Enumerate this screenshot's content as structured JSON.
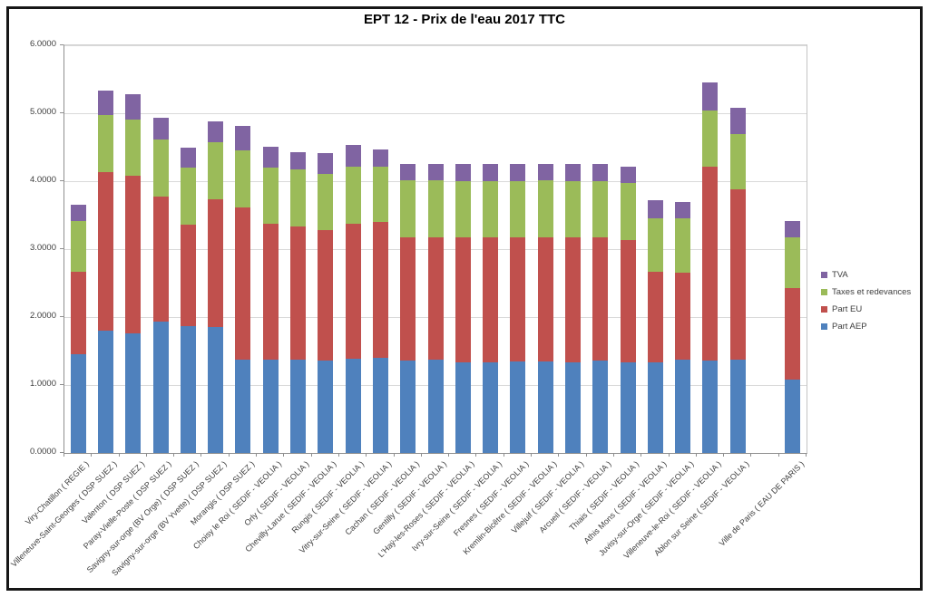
{
  "chart_data": {
    "type": "bar",
    "stacked": true,
    "title": "EPT 12 - Prix de l'eau 2017 TTC",
    "xlabel": "",
    "ylabel": "",
    "ylim": [
      0,
      6
    ],
    "grid": true,
    "legend_position": "right",
    "y_tick_labels": [
      "0.0000",
      "1.0000",
      "2.0000",
      "3.0000",
      "4.0000",
      "5.0000",
      "6.0000"
    ],
    "categories": [
      "Viry-Chatillon ( REGIE )",
      "Villeneuve-Saint-Georges ( DSP SUEZ )",
      "Valenton ( DSP SUEZ )",
      "Paray-Vielle-Poste ( DSP SUEZ )",
      "Savigny-sur-orge (BV Orge) ( DSP SUEZ )",
      "Savigny-sur-orge (BV Yvette) ( DSP SUEZ )",
      "Morangis ( DSP SUEZ )",
      "Choisy le Roi ( SEDIF - VEOLIA )",
      "Orly ( SEDIF - VEOLIA )",
      "Chevilly-Larue ( SEDIF - VEOLIA )",
      "Rungis ( SEDIF - VEOLIA )",
      "Vitry-sur-Seine ( SEDIF - VEOLIA )",
      "Cachan ( SEDIF - VEOLIA )",
      "Gentilly ( SEDIF - VEOLIA )",
      "L'Haÿ-les-Roses ( SEDIF - VEOLIA )",
      "Ivry-sur-Seine ( SEDIF - VEOLIA )",
      "Fresnes ( SEDIF - VEOLIA )",
      "Kremlin-Bicêtre ( SEDIF - VEOLIA )",
      "Villejuif ( SEDIF - VEOLIA )",
      "Arcueil ( SEDIF - VEOLIA )",
      "Thiais ( SEDIF - VEOLIA )",
      "Athis Mons ( SEDIF - VEOLIA )",
      "Juvisy-sur-Orge ( SEDIF - VEOLIA )",
      "Villeneuve-le-Roi ( SEDIF - VEOLIA )",
      "Ablon sur Seine ( SEDIF - VEOLIA )",
      "",
      "Ville de Paris ( EAU DE PARIS )"
    ],
    "series": [
      {
        "name": "Part AEP",
        "color": "#4F81BD",
        "values": [
          1.46,
          1.8,
          1.76,
          1.94,
          1.87,
          1.86,
          1.37,
          1.37,
          1.37,
          1.36,
          1.39,
          1.4,
          1.36,
          1.37,
          1.34,
          1.34,
          1.35,
          1.35,
          1.34,
          1.36,
          1.34,
          1.34,
          1.38,
          1.36,
          1.37,
          0,
          1.08
        ]
      },
      {
        "name": "Part EU",
        "color": "#C0504D",
        "values": [
          1.21,
          2.34,
          2.32,
          1.84,
          1.49,
          1.87,
          2.25,
          2.0,
          1.96,
          1.92,
          1.99,
          2.0,
          1.81,
          1.8,
          1.84,
          1.84,
          1.83,
          1.83,
          1.83,
          1.82,
          1.8,
          1.33,
          1.28,
          2.85,
          2.51,
          0,
          1.35
        ]
      },
      {
        "name": "Taxes et redevances",
        "color": "#9BBB59",
        "values": [
          0.75,
          0.83,
          0.83,
          0.83,
          0.84,
          0.84,
          0.83,
          0.83,
          0.84,
          0.83,
          0.84,
          0.81,
          0.85,
          0.84,
          0.82,
          0.82,
          0.82,
          0.83,
          0.83,
          0.82,
          0.83,
          0.79,
          0.79,
          0.83,
          0.82,
          0,
          0.74
        ]
      },
      {
        "name": "TVA",
        "color": "#8064A2",
        "values": [
          0.24,
          0.37,
          0.37,
          0.33,
          0.3,
          0.31,
          0.36,
          0.31,
          0.26,
          0.3,
          0.31,
          0.26,
          0.24,
          0.24,
          0.25,
          0.25,
          0.25,
          0.25,
          0.25,
          0.25,
          0.24,
          0.26,
          0.25,
          0.41,
          0.38,
          0,
          0.25
        ]
      }
    ],
    "legend_order": [
      "TVA",
      "Taxes et redevances",
      "Part EU",
      "Part AEP"
    ]
  }
}
